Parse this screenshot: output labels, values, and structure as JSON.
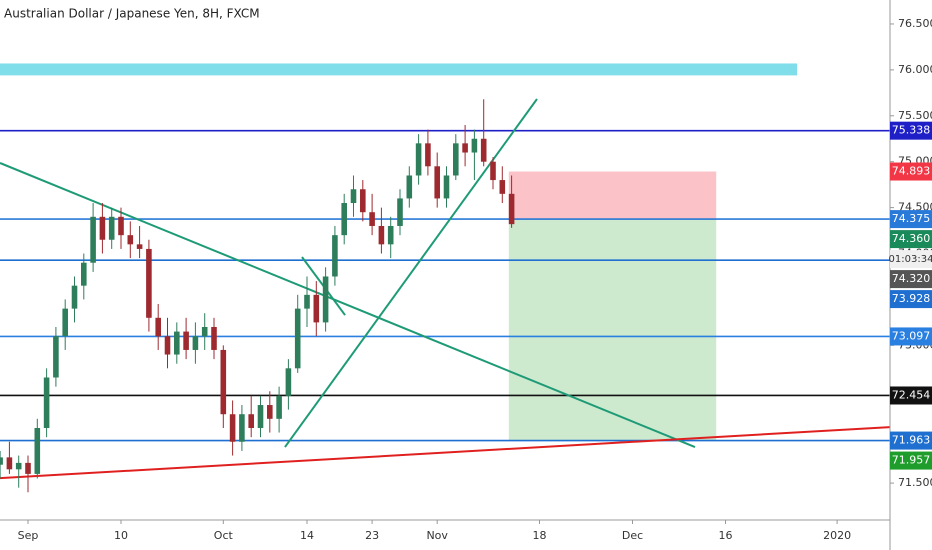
{
  "chart_data": {
    "type": "candlestick",
    "title": "Australian Dollar / Japanese Yen, 8H, FXCM",
    "x": [
      -3,
      -2,
      -1,
      0,
      1,
      2,
      3,
      4,
      5,
      6,
      7,
      8,
      9,
      10,
      11,
      12,
      13,
      14,
      15,
      16,
      17,
      18,
      19,
      20,
      21,
      22,
      23,
      24,
      25,
      26,
      27,
      28,
      29,
      30,
      31,
      32,
      33,
      34,
      35,
      36,
      37,
      38,
      39,
      40,
      41,
      42,
      43,
      44,
      45,
      46,
      47,
      48,
      49,
      50,
      51,
      52
    ],
    "open": [
      71.7,
      71.78,
      71.65,
      71.72,
      71.6,
      72.1,
      72.65,
      73.1,
      73.4,
      73.65,
      73.9,
      74.4,
      74.15,
      74.4,
      74.2,
      74.1,
      74.05,
      73.3,
      73.1,
      72.9,
      73.15,
      72.95,
      73.1,
      73.2,
      72.95,
      72.25,
      71.95,
      72.25,
      72.1,
      72.35,
      72.2,
      72.45,
      72.75,
      73.4,
      73.55,
      73.25,
      73.75,
      74.2,
      74.55,
      74.7,
      74.45,
      74.3,
      74.1,
      74.3,
      74.6,
      74.85,
      75.2,
      74.95,
      74.6,
      74.85,
      75.2,
      75.1,
      75.25,
      75.0,
      74.8,
      74.65
    ],
    "high": [
      71.85,
      71.95,
      71.8,
      71.8,
      72.2,
      72.75,
      73.2,
      73.5,
      73.75,
      74.0,
      74.55,
      74.55,
      74.5,
      74.5,
      74.35,
      74.3,
      74.15,
      73.45,
      73.3,
      73.25,
      73.3,
      73.25,
      73.35,
      73.3,
      73.0,
      72.4,
      72.35,
      72.45,
      72.45,
      72.5,
      72.55,
      72.85,
      73.55,
      73.75,
      73.7,
      73.85,
      74.3,
      74.65,
      74.85,
      74.8,
      74.65,
      74.5,
      74.4,
      74.7,
      74.95,
      75.3,
      75.35,
      75.1,
      74.95,
      75.3,
      75.4,
      75.35,
      75.68,
      75.05,
      74.95,
      74.85
    ],
    "low": [
      71.55,
      71.6,
      71.45,
      71.4,
      71.55,
      72.0,
      72.55,
      72.95,
      73.25,
      73.5,
      73.8,
      74.0,
      74.05,
      74.05,
      73.95,
      73.95,
      73.15,
      72.95,
      72.75,
      72.8,
      72.85,
      72.8,
      72.95,
      72.85,
      72.1,
      71.8,
      71.85,
      72.0,
      72.0,
      72.05,
      72.05,
      72.3,
      72.7,
      73.2,
      73.1,
      73.15,
      73.65,
      74.1,
      74.4,
      74.35,
      74.2,
      74.0,
      73.95,
      74.2,
      74.5,
      74.75,
      74.85,
      74.5,
      74.5,
      74.8,
      74.95,
      74.8,
      74.95,
      74.7,
      74.55,
      74.28
    ],
    "close": [
      71.78,
      71.65,
      71.72,
      71.6,
      72.1,
      72.65,
      73.1,
      73.4,
      73.65,
      73.9,
      74.4,
      74.15,
      74.4,
      74.2,
      74.1,
      74.05,
      73.3,
      73.1,
      72.9,
      73.15,
      72.95,
      73.1,
      73.2,
      72.95,
      72.25,
      71.95,
      72.25,
      72.1,
      72.35,
      72.2,
      72.45,
      72.75,
      73.4,
      73.55,
      73.25,
      73.75,
      74.2,
      74.55,
      74.7,
      74.45,
      74.3,
      74.1,
      74.3,
      74.6,
      74.85,
      75.2,
      74.95,
      74.6,
      74.85,
      75.2,
      75.1,
      75.25,
      75.0,
      74.8,
      74.65,
      74.32
    ],
    "up_color": "#2e7d5b",
    "down_color": "#9e2a2f",
    "xlim": [
      -3.011,
      92.688
    ],
    "xticks": [
      {
        "value": 0,
        "label": "Sep"
      },
      10,
      {
        "value": 21,
        "label": "Oct"
      },
      {
        "value": 30,
        "label": "14"
      },
      {
        "value": 37,
        "label": "23"
      },
      {
        "value": 44,
        "label": "Nov"
      },
      {
        "value": 55,
        "label": "18"
      },
      {
        "value": 65,
        "label": "Dec"
      },
      {
        "value": 75,
        "label": "16"
      },
      {
        "value": 87,
        "label": "2020"
      }
    ],
    "ylim": [
      71.098,
      76.761
    ],
    "yticks": [
      {
        "value": 71.5,
        "label": "71.500"
      },
      {
        "value": 72,
        "label": "72.000"
      },
      {
        "value": 72.5,
        "label": "72.500"
      },
      {
        "value": 73,
        "label": "73.000"
      },
      {
        "value": 73.5,
        "label": "73.500"
      },
      {
        "value": 74,
        "label": "74.000"
      },
      {
        "value": 74.5,
        "label": "74.500"
      },
      {
        "value": 75,
        "label": "75.000"
      },
      {
        "value": 75.5,
        "label": "75.500"
      },
      {
        "value": 76,
        "label": "76.000"
      },
      {
        "value": 76.5,
        "label": "76.500"
      }
    ],
    "band": {
      "x": [
        -3.011,
        82.7
      ],
      "y": [
        75.94,
        76.07
      ],
      "color": "#80deea"
    },
    "trend_lines": [
      {
        "x": [
          -3.01,
          71.72
        ],
        "y": [
          74.986,
          71.892
        ],
        "color": "#1e9b76"
      },
      {
        "x": [
          27.63,
          54.73
        ],
        "y": [
          71.892,
          75.683
        ],
        "color": "#1e9b76"
      },
      {
        "x": [
          29.46,
          34.09
        ],
        "y": [
          73.962,
          73.33
        ],
        "color": "#1e9b76"
      },
      {
        "x": [
          -3.01,
          92.69
        ],
        "y": [
          71.554,
          72.11
        ],
        "color": "#e0201f"
      }
    ],
    "position": {
      "x": [
        51.7,
        74
      ],
      "entry": 74.375,
      "stop": 74.893,
      "target": 71.963
    },
    "price_tags": [
      {
        "value": 75.338,
        "color": "#1f1fc8",
        "line": true
      },
      {
        "value": 74.893,
        "color": "#f23645"
      },
      {
        "value": 74.375,
        "color": "#2979d8",
        "line": true
      },
      {
        "value": 74.36,
        "label": "74.360",
        "color": "#1b8a5a"
      },
      {
        "value": 74.32,
        "label": "74.320",
        "color": "#555555"
      },
      {
        "value": 73.928,
        "color": "#1e6fd0",
        "line": true
      },
      {
        "value": 73.097,
        "color": "#2a80e0",
        "line": true
      },
      {
        "value": 72.454,
        "color": "#111111",
        "line": true
      },
      {
        "value": 71.963,
        "color": "#1e6fd0",
        "line": true
      },
      {
        "value": 71.957,
        "color": "#1f9d2c"
      }
    ],
    "countdown": "01:03:34"
  }
}
